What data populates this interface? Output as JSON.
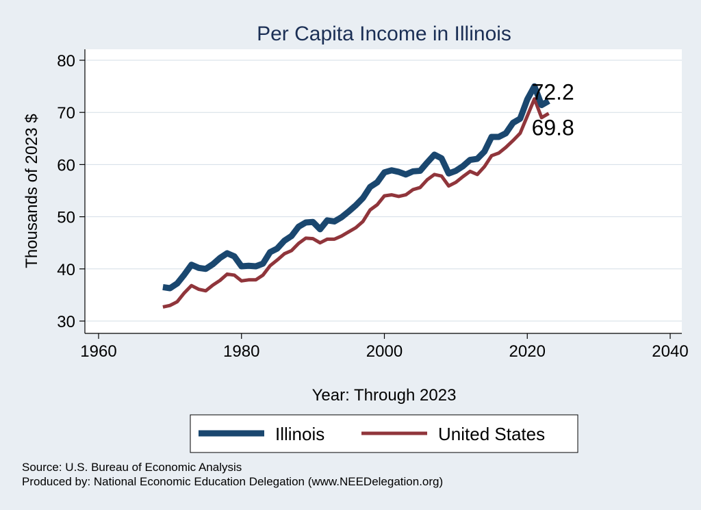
{
  "chart_data": {
    "type": "line",
    "title": "Per Capita Income in Illinois",
    "xlabel": "Year: Through 2023",
    "ylabel": "Thousands of 2023 $",
    "xlim": [
      1960,
      2040
    ],
    "ylim": [
      30,
      80
    ],
    "x_ticks": [
      1960,
      1980,
      2000,
      2020,
      2040
    ],
    "y_ticks": [
      30,
      40,
      50,
      60,
      70,
      80
    ],
    "grid": true,
    "legend_position": "bottom",
    "x": [
      1969,
      1970,
      1971,
      1972,
      1973,
      1974,
      1975,
      1976,
      1977,
      1978,
      1979,
      1980,
      1981,
      1982,
      1983,
      1984,
      1985,
      1986,
      1987,
      1988,
      1989,
      1990,
      1991,
      1992,
      1993,
      1994,
      1995,
      1996,
      1997,
      1998,
      1999,
      2000,
      2001,
      2002,
      2003,
      2004,
      2005,
      2006,
      2007,
      2008,
      2009,
      2010,
      2011,
      2012,
      2013,
      2014,
      2015,
      2016,
      2017,
      2018,
      2019,
      2020,
      2021,
      2022,
      2023
    ],
    "series": [
      {
        "name": "Illinois",
        "color": "#1a476f",
        "values": [
          36.5,
          36.3,
          37.2,
          38.9,
          40.8,
          40.2,
          40.0,
          40.9,
          42.1,
          43.0,
          42.4,
          40.5,
          40.6,
          40.5,
          41.0,
          43.2,
          43.9,
          45.4,
          46.3,
          48.1,
          48.9,
          49.0,
          47.6,
          49.3,
          49.1,
          49.9,
          51.0,
          52.2,
          53.6,
          55.7,
          56.6,
          58.5,
          58.9,
          58.6,
          58.1,
          58.7,
          58.8,
          60.4,
          61.9,
          61.2,
          58.3,
          58.8,
          59.7,
          60.9,
          61.1,
          62.5,
          65.3,
          65.3,
          66.0,
          68.0,
          68.8,
          72.5,
          75.0,
          71.4,
          72.2
        ]
      },
      {
        "name": "United States",
        "color": "#90353b",
        "values": [
          32.7,
          33.0,
          33.7,
          35.4,
          36.8,
          36.1,
          35.8,
          36.9,
          37.8,
          39.0,
          38.8,
          37.7,
          37.9,
          37.9,
          38.8,
          40.6,
          41.7,
          42.9,
          43.5,
          44.9,
          45.9,
          45.8,
          45.0,
          45.7,
          45.7,
          46.3,
          47.1,
          47.9,
          49.1,
          51.3,
          52.3,
          54.0,
          54.2,
          53.9,
          54.2,
          55.2,
          55.6,
          57.1,
          58.1,
          57.8,
          55.9,
          56.6,
          57.7,
          58.7,
          58.1,
          59.6,
          61.7,
          62.2,
          63.3,
          64.6,
          66.0,
          69.3,
          72.6,
          69.0,
          69.8
        ]
      }
    ],
    "end_labels": [
      "72.2",
      "69.8"
    ]
  },
  "notes": {
    "source": "Source: U.S. Bureau of Economic Analysis",
    "produced": "Produced by: National Economic Education Delegation (www.NEEDelegation.org)"
  }
}
